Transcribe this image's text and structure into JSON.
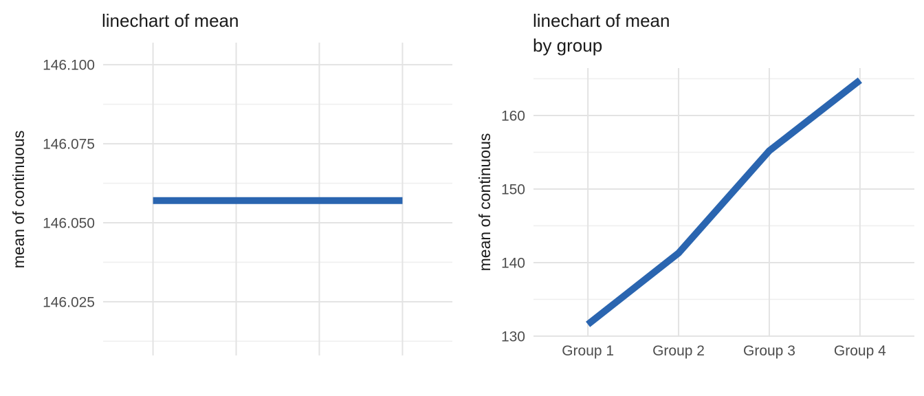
{
  "colors": {
    "line": "#2a65b0",
    "grid_major": "#e3e3e3",
    "grid_minor": "#efefef",
    "tick_text": "#4d4d4d",
    "title_text": "#1a1a1a",
    "background": "#ffffff"
  },
  "chart_data": [
    {
      "type": "line",
      "title": "linechart of mean",
      "xlabel": "",
      "ylabel": "mean of continuous",
      "categories": [
        "",
        "",
        "",
        ""
      ],
      "show_x_labels": false,
      "series": [
        {
          "name": "mean",
          "values": [
            146.057,
            146.057,
            146.057,
            146.057
          ]
        }
      ],
      "ylim": [
        146.008,
        146.107
      ],
      "yticks": [
        146.025,
        146.05,
        146.075,
        146.1
      ],
      "ytick_labels": [
        "146.025",
        "146.050",
        "146.075",
        "146.100"
      ],
      "yticks_minor": [
        146.0125,
        146.0375,
        146.0625,
        146.0875
      ],
      "grid": "major+minor horizontal, major vertical",
      "legend": "none",
      "line_color": "#2a65b0"
    },
    {
      "type": "line",
      "title": "linechart of mean\nby group",
      "xlabel": "",
      "ylabel": "mean of continuous",
      "categories": [
        "Group 1",
        "Group 2",
        "Group 3",
        "Group 4"
      ],
      "show_x_labels": true,
      "series": [
        {
          "name": "mean by group",
          "values": [
            131.6,
            141.3,
            155.2,
            164.8
          ]
        }
      ],
      "ylim": [
        129.9,
        166.45
      ],
      "yticks": [
        130,
        140,
        150,
        160
      ],
      "ytick_labels": [
        "130",
        "140",
        "150",
        "160"
      ],
      "yticks_minor": [
        135,
        145,
        155,
        165
      ],
      "grid": "major+minor horizontal, major vertical",
      "legend": "none",
      "line_color": "#2a65b0"
    }
  ]
}
